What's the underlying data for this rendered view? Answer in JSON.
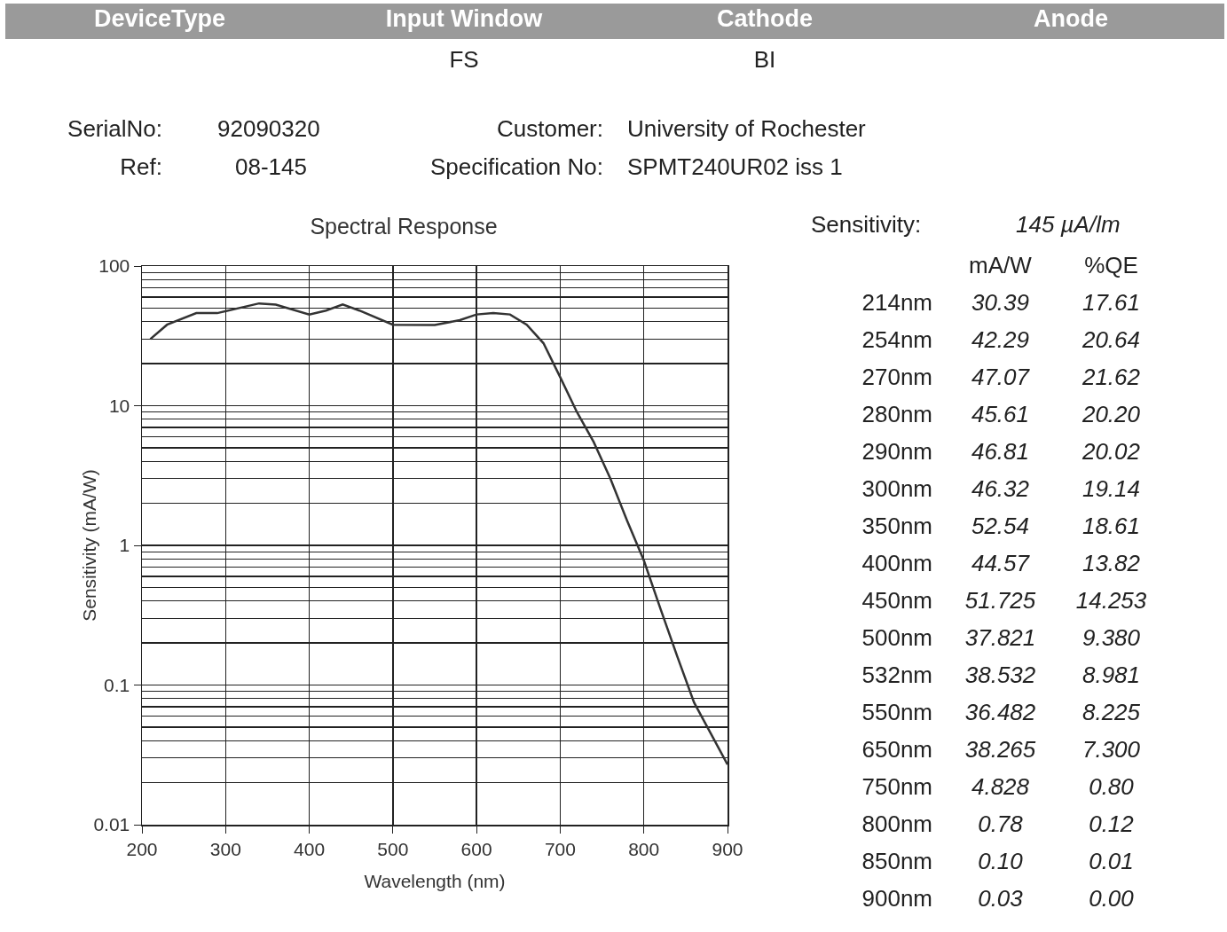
{
  "chart_data": [
    {
      "type": "other",
      "annotations": [
        "DeviceType",
        "Input Window",
        "Cathode",
        "Anode",
        "FS",
        "BI",
        "SerialNo:",
        "92090320",
        "Customer:",
        "University of Rochester",
        "Ref:",
        "08-145",
        "Specification No:",
        "SPMT240UR02 iss 1"
      ]
    },
    {
      "type": "line",
      "title": "Spectral Response",
      "xlabel": "Wavelength (nm)",
      "ylabel": "Sensitivity (mA/W)",
      "log": "y",
      "grid": true,
      "marker": "none",
      "line_style": "solid",
      "xlim": [
        200,
        900
      ],
      "xticks": [
        200,
        300,
        400,
        500,
        600,
        700,
        800,
        900
      ],
      "ylim": [
        0.01,
        100
      ],
      "yticks": [
        0.01,
        0.1,
        1,
        10,
        100
      ],
      "series": [
        {
          "color": "#333333",
          "x": [
            210,
            230,
            265,
            290,
            340,
            360,
            400,
            420,
            440,
            460,
            500,
            550,
            580,
            600,
            620,
            640,
            660,
            680,
            700,
            720,
            740,
            760,
            780,
            800,
            820,
            840,
            860,
            880,
            900
          ],
          "values": [
            30,
            38,
            46,
            46,
            54,
            53,
            45,
            48,
            53,
            48,
            38,
            37.8,
            41,
            45,
            46,
            45,
            38,
            28,
            16,
            9,
            5.5,
            3,
            1.5,
            0.78,
            0.35,
            0.16,
            0.075,
            0.045,
            0.027
          ]
        }
      ]
    },
    {
      "type": "other",
      "title": "Sensitivity:",
      "subtitle": "145 µA/lm",
      "categories": [
        "214nm",
        "254nm",
        "270nm",
        "280nm",
        "290nm",
        "300nm",
        "350nm",
        "400nm",
        "450nm",
        "500nm",
        "532nm",
        "550nm",
        "650nm",
        "750nm",
        "800nm",
        "850nm",
        "900nm"
      ],
      "series": [
        {
          "name": "mA/W",
          "values": [
            30.39,
            42.29,
            47.07,
            45.61,
            46.81,
            46.32,
            52.54,
            44.57,
            51.725,
            37.821,
            38.532,
            36.482,
            38.265,
            4.828,
            0.78,
            0.1,
            0.03
          ],
          "value_labels": [
            "30.39",
            "42.29",
            "47.07",
            "45.61",
            "46.81",
            "46.32",
            "52.54",
            "44.57",
            "51.725",
            "37.821",
            "38.532",
            "36.482",
            "38.265",
            "4.828",
            "0.78",
            "0.10",
            "0.03"
          ]
        },
        {
          "name": "%QE",
          "values": [
            17.61,
            20.64,
            21.62,
            20.2,
            20.02,
            19.14,
            18.61,
            13.82,
            14.253,
            9.38,
            8.981,
            8.225,
            7.3,
            0.8,
            0.12,
            0.01,
            0.0
          ],
          "value_labels": [
            "17.61",
            "20.64",
            "21.62",
            "20.20",
            "20.02",
            "19.14",
            "18.61",
            "13.82",
            "14.253",
            "9.380",
            "8.981",
            "8.225",
            "7.300",
            "0.80",
            "0.12",
            "0.01",
            "0.00"
          ]
        }
      ]
    }
  ]
}
